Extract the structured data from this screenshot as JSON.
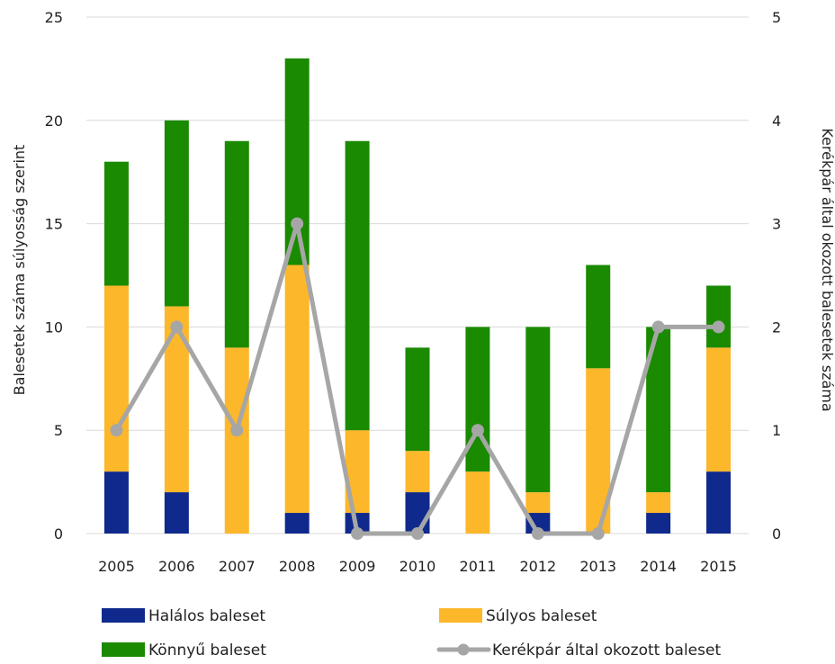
{
  "chart_data": {
    "type": "bar",
    "stacked": true,
    "categories": [
      "2005",
      "2006",
      "2007",
      "2008",
      "2009",
      "2010",
      "2011",
      "2012",
      "2013",
      "2014",
      "2015"
    ],
    "series": [
      {
        "name": "Halálos baleset",
        "color": "#0f2a8c",
        "values": [
          3,
          2,
          0,
          1,
          1,
          2,
          0,
          1,
          0,
          1,
          3
        ]
      },
      {
        "name": "Súlyos baleset",
        "color": "#fdb72a",
        "values": [
          9,
          9,
          9,
          12,
          4,
          2,
          3,
          1,
          8,
          1,
          6
        ]
      },
      {
        "name": "Könnyű baleset",
        "color": "#1a8a00",
        "values": [
          6,
          9,
          10,
          10,
          14,
          5,
          7,
          8,
          5,
          8,
          3
        ]
      }
    ],
    "line_series": {
      "name": "Kerékpár által okozott baleset",
      "color": "#a6a6a6",
      "axis": "right",
      "values": [
        1,
        2,
        1,
        3,
        0,
        0,
        1,
        0,
        0,
        2,
        2
      ]
    },
    "ylabel": "Balesetek száma súlyosság szerint",
    "y2label": "Kerékpár által okozott balesetek száma",
    "ylim": [
      0,
      25
    ],
    "y2lim": [
      0,
      5
    ],
    "yticks": [
      "0",
      "5",
      "10",
      "15",
      "20",
      "25"
    ],
    "y2ticks": [
      "0",
      "1",
      "2",
      "3",
      "4",
      "5"
    ],
    "grid": true,
    "legend_position": "bottom"
  }
}
